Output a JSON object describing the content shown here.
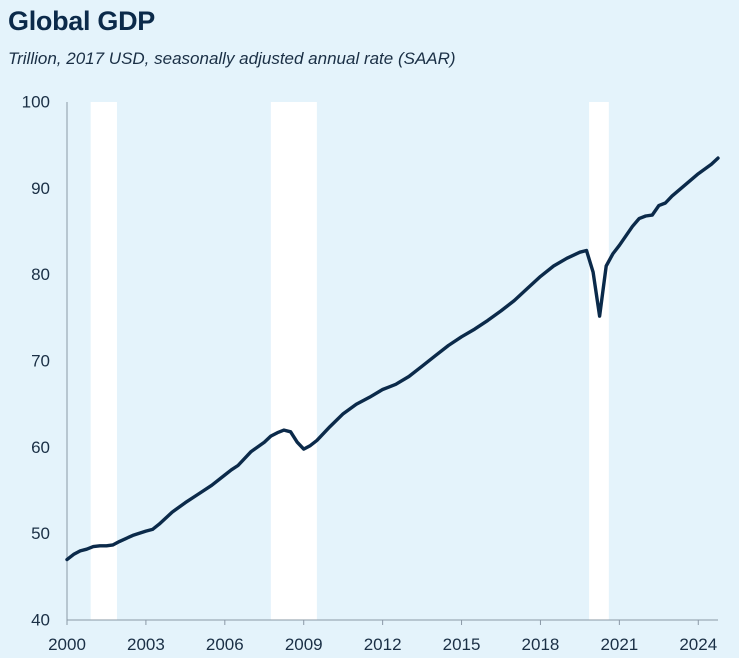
{
  "chart_data": {
    "type": "line",
    "title": "Global GDP",
    "subtitle": "Trillion, 2017 USD, seasonally adjusted annual rate (SAAR)",
    "xlabel": "",
    "ylabel": "",
    "xlim": [
      2000,
      2024.75
    ],
    "ylim": [
      40,
      100
    ],
    "y_ticks": [
      40,
      50,
      60,
      70,
      80,
      90,
      100
    ],
    "y_tick_labels": [
      "40",
      "50",
      "60",
      "70",
      "80",
      "90",
      "100"
    ],
    "x_ticks": [
      2000,
      2003,
      2006,
      2009,
      2012,
      2015,
      2018,
      2021,
      2024
    ],
    "x_tick_labels": [
      "2000",
      "2003",
      "2006",
      "2009",
      "2012",
      "2015",
      "2018",
      "2021",
      "2024"
    ],
    "grid": false,
    "recession_bands": [
      {
        "start": 2000.9,
        "end": 2001.9
      },
      {
        "start": 2007.75,
        "end": 2009.5
      },
      {
        "start": 2019.85,
        "end": 2020.6
      }
    ],
    "series": [
      {
        "name": "Global GDP",
        "color": "#0b2a4a",
        "x": [
          2000.0,
          2000.25,
          2000.5,
          2000.75,
          2001.0,
          2001.25,
          2001.5,
          2001.75,
          2002.0,
          2002.5,
          2003.0,
          2003.25,
          2003.5,
          2004.0,
          2004.5,
          2005.0,
          2005.5,
          2006.0,
          2006.25,
          2006.5,
          2007.0,
          2007.5,
          2007.75,
          2008.0,
          2008.25,
          2008.5,
          2008.75,
          2009.0,
          2009.25,
          2009.5,
          2010.0,
          2010.5,
          2011.0,
          2011.5,
          2012.0,
          2012.25,
          2012.5,
          2013.0,
          2013.5,
          2014.0,
          2014.5,
          2015.0,
          2015.5,
          2016.0,
          2016.5,
          2017.0,
          2017.5,
          2018.0,
          2018.5,
          2019.0,
          2019.5,
          2019.75,
          2020.0,
          2020.25,
          2020.5,
          2020.75,
          2021.0,
          2021.5,
          2021.75,
          2022.0,
          2022.25,
          2022.5,
          2022.75,
          2023.0,
          2023.5,
          2024.0,
          2024.5,
          2024.75
        ],
        "values": [
          47.0,
          47.6,
          48.0,
          48.2,
          48.5,
          48.6,
          48.6,
          48.7,
          49.1,
          49.8,
          50.3,
          50.5,
          51.1,
          52.5,
          53.6,
          54.6,
          55.6,
          56.8,
          57.4,
          57.9,
          59.5,
          60.6,
          61.3,
          61.7,
          62.0,
          61.8,
          60.6,
          59.8,
          60.2,
          60.8,
          62.4,
          63.9,
          65.0,
          65.8,
          66.7,
          67.0,
          67.3,
          68.2,
          69.4,
          70.6,
          71.8,
          72.8,
          73.7,
          74.7,
          75.8,
          77.0,
          78.4,
          79.8,
          81.0,
          81.9,
          82.6,
          82.8,
          80.3,
          75.2,
          81.0,
          82.4,
          83.4,
          85.6,
          86.5,
          86.8,
          86.9,
          88.0,
          88.3,
          89.1,
          90.4,
          91.7,
          92.8,
          93.5
        ]
      }
    ]
  }
}
